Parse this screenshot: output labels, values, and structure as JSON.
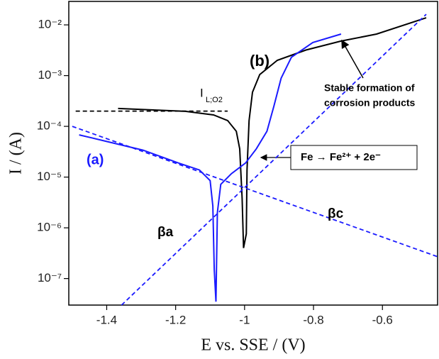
{
  "chart_data": {
    "type": "line",
    "x_label": "E vs. SSE / (V)",
    "y_label": "I / (A)",
    "xlim": [
      -1.51,
      -0.44
    ],
    "ylim": [
      3e-08,
      0.029
    ],
    "log_y": true,
    "xticks": [
      -1.4,
      -1.2,
      -1.0,
      -0.8,
      -0.6
    ],
    "yticks": [
      {
        "value": 1e-07,
        "label": "10⁻⁷"
      },
      {
        "value": 1e-06,
        "label": "10⁻⁶"
      },
      {
        "value": 1e-05,
        "label": "10⁻⁵"
      },
      {
        "value": 0.0001,
        "label": "10⁻⁴"
      },
      {
        "value": 0.001,
        "label": "10⁻³"
      },
      {
        "value": 0.01,
        "label": "10⁻²"
      }
    ],
    "series": [
      {
        "color": "#000000",
        "dashed": false,
        "x": [
          -1.367,
          -1.172,
          -1.09,
          -1.049,
          -1.024,
          -1.014,
          -1.007,
          -1.003,
          -0.995,
          -0.993,
          -0.987,
          -0.977,
          -0.956,
          -0.905,
          -0.822,
          -0.72,
          -0.617,
          -0.473
        ],
        "values": [
          0.000225,
          0.000198,
          0.000168,
          0.00013,
          8e-05,
          3.6e-05,
          3.8e-06,
          4e-07,
          7.6e-07,
          1.38e-05,
          0.00013,
          0.00047,
          0.00105,
          0.002,
          0.0032,
          0.0048,
          0.0066,
          0.0138
        ]
      },
      {
        "color": "#1a1aff",
        "dashed": false,
        "x": [
          -1.48,
          -1.398,
          -1.295,
          -1.192,
          -1.131,
          -1.1,
          -1.092,
          -1.088,
          -1.083,
          -1.079,
          -1.069,
          -1.038,
          -0.997,
          -0.966,
          -0.935,
          -0.915,
          -0.894,
          -0.864,
          -0.802,
          -0.72
        ],
        "values": [
          6.8e-05,
          5e-05,
          3.4e-05,
          1.9e-05,
          1.38e-05,
          8.5e-06,
          2.7e-06,
          1.5e-07,
          3.5e-08,
          2e-06,
          7.2e-06,
          1.17e-05,
          1.9e-05,
          3.6e-05,
          8e-05,
          0.00025,
          0.00089,
          0.0023,
          0.0045,
          0.0066
        ]
      },
      {
        "color": "#1a1aff",
        "dashed": true,
        "x": [
          -1.357,
          -0.473
        ],
        "values": [
          3e-08,
          0.0162
        ]
      },
      {
        "color": "#1a1aff",
        "dashed": true,
        "x": [
          -1.5,
          -0.44
        ],
        "values": [
          0.0001,
          2.7e-07
        ]
      },
      {
        "color": "#000000",
        "dashed": true,
        "x": [
          -1.49,
          -1.049
        ],
        "values": [
          0.0002,
          0.0002
        ]
      }
    ],
    "annotations": [
      {
        "text": "(a)",
        "color": "#1a1aff"
      },
      {
        "text": "(b)",
        "color": "#000000"
      },
      {
        "text": "I",
        "color": "#000000"
      },
      {
        "text": "L;O2",
        "color": "#000000"
      },
      {
        "text": "Stable formation of",
        "color": "#000000"
      },
      {
        "text": "corrosion products",
        "color": "#000000"
      },
      {
        "text": "Fe → Fe²⁺ + 2e⁻",
        "color": "#000000"
      },
      {
        "text": "βa",
        "color": "#000000"
      },
      {
        "text": "βc",
        "color": "#000000"
      }
    ]
  }
}
